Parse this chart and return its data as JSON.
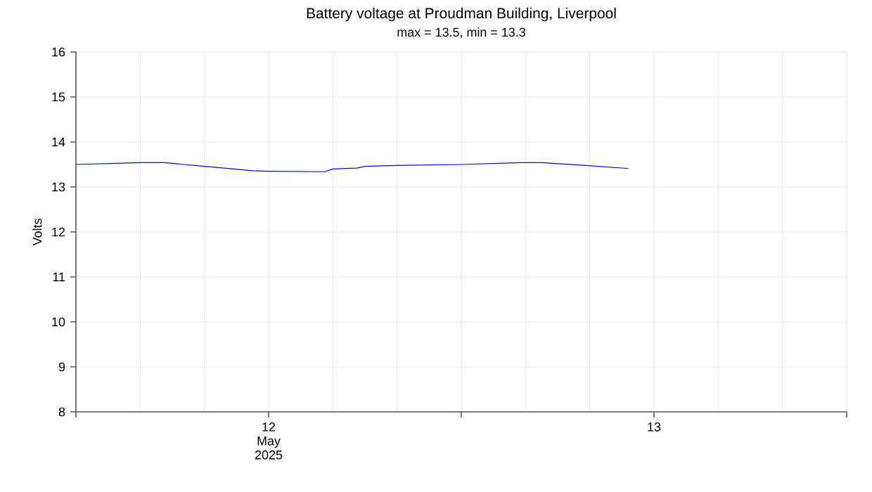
{
  "chart_data": {
    "type": "line",
    "title": "Battery voltage at Proudman Building, Liverpool",
    "subtitle": "max = 13.5, min = 13.3",
    "ylabel": "Volts",
    "x": [
      "2025-05-11T12:00",
      "2025-05-11T16:00",
      "2025-05-11T17:30",
      "2025-05-11T20:00",
      "2025-05-11T23:00",
      "2025-05-12T00:00",
      "2025-05-12T03:30",
      "2025-05-12T04:00",
      "2025-05-12T05:30",
      "2025-05-12T06:00",
      "2025-05-12T08:00",
      "2025-05-12T12:00",
      "2025-05-12T15:45",
      "2025-05-12T17:00",
      "2025-05-12T19:45",
      "2025-05-12T22:25"
    ],
    "values": [
      13.5,
      13.54,
      13.54,
      13.46,
      13.36,
      13.35,
      13.34,
      13.4,
      13.42,
      13.46,
      13.48,
      13.5,
      13.54,
      13.54,
      13.48,
      13.41
    ],
    "color": "#0000ff",
    "xlim": [
      "2025-05-11T12:00",
      "2025-05-13T12:00"
    ],
    "xticks": [
      {
        "value": "2025-05-11T12:00",
        "label": null
      },
      {
        "value": "2025-05-12",
        "label": "12 May 2025"
      },
      {
        "value": "2025-05-12T12:00",
        "label": null
      },
      {
        "value": "2025-05-13",
        "label": "13"
      },
      {
        "value": "2025-05-13T12:00",
        "label": null
      }
    ],
    "ylim": [
      8,
      16
    ],
    "yticks": [
      8,
      9,
      10,
      11,
      12,
      13,
      14,
      15,
      16
    ],
    "grid": true,
    "marker": "none",
    "line_style": "solid"
  }
}
